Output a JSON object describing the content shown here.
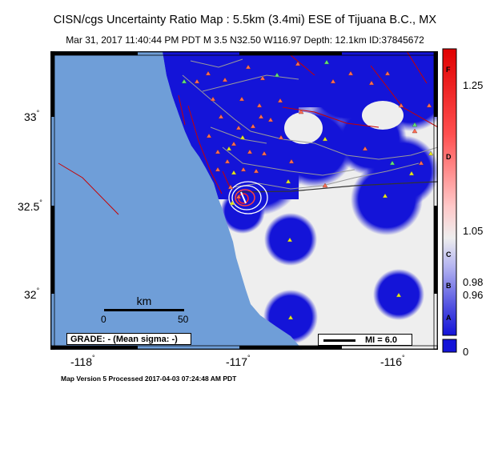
{
  "title": "CISN/cgs Uncertainty Ratio Map : 5.5km (3.4mi) ESE of Tijuana B.C., MX",
  "subtitle": "Mar 31, 2017 11:40:44 PM PDT   M 3.5   N32.50 W116.97   Depth: 12.1km   ID:37845672",
  "lon_ticks": [
    "-118",
    "-117",
    "-116"
  ],
  "lat_ticks": [
    "33",
    "32.5",
    "32"
  ],
  "degree_symbol": "°",
  "scale": {
    "title": "km",
    "left": "0",
    "right": "50"
  },
  "grade_text": "GRADE: - (Mean sigma: -)",
  "mi_text": "MI = 6.0",
  "footer": "Map Version 5 Processed 2017-04-03 07:24:48 AM PDT",
  "colorbar": {
    "labels": [
      "1.25",
      "1.05",
      "0.98",
      "0.96",
      "0"
    ],
    "letters": [
      "F",
      "D",
      "C",
      "B",
      "A"
    ]
  },
  "colors": {
    "ocean": "#6f9ed8",
    "land": "#eeeeee",
    "station_halo": "#1414d8",
    "fault": "#c80000",
    "road": "#9a9a9a",
    "station_red": "#ff6e56",
    "station_yellow": "#e8e81a",
    "station_green": "#66e07a"
  }
}
